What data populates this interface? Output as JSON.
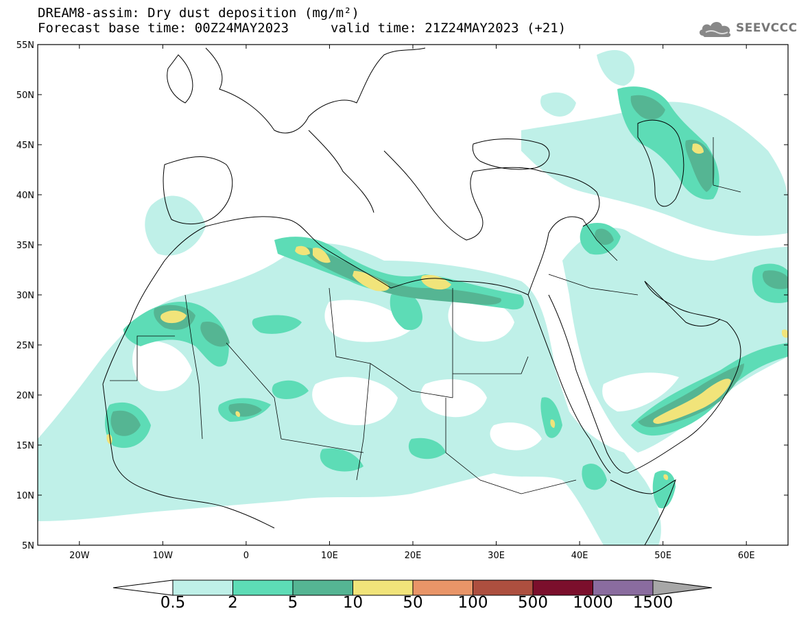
{
  "header": {
    "title": "DREAM8-assim: Dry dust deposition (mg/m²)",
    "base_time": "Forecast base time: 00Z24MAY2023",
    "valid_time": "valid time: 21Z24MAY2023 (+21)"
  },
  "logo": {
    "text": "SEEVCCC",
    "icon": "cloud-icon"
  },
  "map": {
    "projection": "lat-lon",
    "lon_range": [
      -25,
      65
    ],
    "lat_range": [
      5,
      55
    ],
    "lon_ticks": [
      {
        "value": -20,
        "label": "20W"
      },
      {
        "value": -10,
        "label": "10W"
      },
      {
        "value": 0,
        "label": "0"
      },
      {
        "value": 10,
        "label": "10E"
      },
      {
        "value": 20,
        "label": "20E"
      },
      {
        "value": 30,
        "label": "30E"
      },
      {
        "value": 40,
        "label": "40E"
      },
      {
        "value": 50,
        "label": "50E"
      },
      {
        "value": 60,
        "label": "60E"
      }
    ],
    "lat_ticks": [
      {
        "value": 55,
        "label": "55N"
      },
      {
        "value": 50,
        "label": "50N"
      },
      {
        "value": 45,
        "label": "45N"
      },
      {
        "value": 40,
        "label": "40N"
      },
      {
        "value": 35,
        "label": "35N"
      },
      {
        "value": 30,
        "label": "30N"
      },
      {
        "value": 25,
        "label": "25N"
      },
      {
        "value": 20,
        "label": "20N"
      },
      {
        "value": 15,
        "label": "15N"
      },
      {
        "value": 10,
        "label": "10N"
      },
      {
        "value": 5,
        "label": "5N"
      }
    ]
  },
  "colorbar": {
    "colors": [
      "#bff0e8",
      "#5ddcb6",
      "#55b593",
      "#f1e47a",
      "#e99568",
      "#ad4f3f",
      "#7b0f2c",
      "#8a6c9f",
      "#a7a7a7"
    ],
    "labels": [
      "0.5",
      "2",
      "5",
      "10",
      "50",
      "100",
      "500",
      "1000",
      "1500"
    ]
  }
}
